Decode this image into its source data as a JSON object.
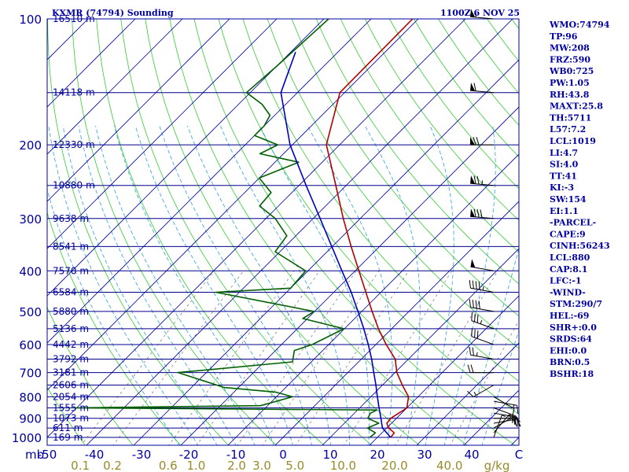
{
  "header": {
    "title": "KXMR (74794) Sounding",
    "datetime": "1100Z  6 NOV 25"
  },
  "colors": {
    "frame": "#0000a0",
    "isobar": "#00008b",
    "isotherm": "#0000a0",
    "dry_adiabat": "#32cd32",
    "moist_adiabat": "#30a0e0",
    "mixing_ratio": "#707070",
    "temperature": "#b00000",
    "dewpoint": "#006000",
    "parcel": "#0000c0",
    "mixing_label": "#9a8a2a"
  },
  "chart_data": {
    "type": "skew-t",
    "ylabel": "mb",
    "xlabel": "C",
    "ylim": [
      1000,
      100
    ],
    "xlim": [
      -50,
      50
    ],
    "pressure_levels": [
      {
        "p": 100,
        "label": "100",
        "height": "16510 m"
      },
      {
        "p": 150,
        "label": "",
        "height": "14118 m"
      },
      {
        "p": 200,
        "label": "200",
        "height": "12330 m"
      },
      {
        "p": 250,
        "label": "",
        "height": "10880 m"
      },
      {
        "p": 300,
        "label": "300",
        "height": "9638 m"
      },
      {
        "p": 350,
        "label": "",
        "height": "8541 m"
      },
      {
        "p": 400,
        "label": "400",
        "height": "7570 m"
      },
      {
        "p": 450,
        "label": "",
        "height": "6584 m"
      },
      {
        "p": 500,
        "label": "500",
        "height": "5880 m"
      },
      {
        "p": 550,
        "label": "",
        "height": "5136 m"
      },
      {
        "p": 600,
        "label": "600",
        "height": "4442 m"
      },
      {
        "p": 650,
        "label": "",
        "height": "3792 m"
      },
      {
        "p": 700,
        "label": "700",
        "height": "3181 m"
      },
      {
        "p": 750,
        "label": "",
        "height": "2606 m"
      },
      {
        "p": 800,
        "label": "800",
        "height": "2054 m"
      },
      {
        "p": 850,
        "label": "",
        "height": "1555 m"
      },
      {
        "p": 900,
        "label": "900",
        "height": "1073 m"
      },
      {
        "p": 950,
        "label": "",
        "height": "611 m"
      },
      {
        "p": 1000,
        "label": "1000",
        "height": "169 m"
      }
    ],
    "temp_ticks": [
      -50,
      -40,
      -30,
      -20,
      -10,
      0,
      10,
      20,
      30,
      40
    ],
    "temp_tick_labels": [
      "-50",
      "-40",
      "-30",
      "-20",
      "-10",
      "0",
      "10",
      "20",
      "30",
      "40"
    ],
    "unit_label": "C",
    "mixing_ratio_ticks": [
      {
        "value": 0.1,
        "label": "0.1"
      },
      {
        "value": 0.2,
        "label": "0.2"
      },
      {
        "value": 0.6,
        "label": "0.6"
      },
      {
        "value": 1.0,
        "label": "1.0"
      },
      {
        "value": 2.0,
        "label": "2.0"
      },
      {
        "value": 3.0,
        "label": "3.0"
      },
      {
        "value": 5.0,
        "label": "5.0"
      },
      {
        "value": 10.0,
        "label": "10.0"
      },
      {
        "value": 20.0,
        "label": "20.0"
      },
      {
        "value": 40.0,
        "label": "40.0"
      }
    ],
    "mixing_unit": "g/kg",
    "series": [
      {
        "key": "temperature",
        "points": [
          [
            1000,
            22.8
          ],
          [
            975,
            22.6
          ],
          [
            950,
            20.4
          ],
          [
            925,
            19.0
          ],
          [
            900,
            18.8
          ],
          [
            875,
            19.4
          ],
          [
            850,
            20.0
          ],
          [
            800,
            18.0
          ],
          [
            750,
            14.2
          ],
          [
            700,
            10.4
          ],
          [
            650,
            7.2
          ],
          [
            600,
            2.2
          ],
          [
            550,
            -2.8
          ],
          [
            500,
            -7.8
          ],
          [
            450,
            -13.2
          ],
          [
            400,
            -19.2
          ],
          [
            350,
            -26.0
          ],
          [
            300,
            -33.6
          ],
          [
            250,
            -42.2
          ],
          [
            200,
            -52.8
          ],
          [
            150,
            -61.0
          ],
          [
            100,
            -61.2
          ]
        ]
      },
      {
        "key": "dewpoint",
        "points": [
          [
            1000,
            18.4
          ],
          [
            975,
            18.6
          ],
          [
            950,
            15.9
          ],
          [
            925,
            17.3
          ],
          [
            900,
            13.9
          ],
          [
            875,
            13.4
          ],
          [
            860,
            14.1
          ],
          [
            850,
            -50.6
          ],
          [
            840,
            -11.5
          ],
          [
            800,
            -6.6
          ],
          [
            780,
            -11.0
          ],
          [
            760,
            -23.0
          ],
          [
            700,
            -36.0
          ],
          [
            660,
            -14.0
          ],
          [
            620,
            -16.0
          ],
          [
            600,
            -13.5
          ],
          [
            550,
            -10.1
          ],
          [
            520,
            -21.0
          ],
          [
            500,
            -20.1
          ],
          [
            450,
            -45.0
          ],
          [
            440,
            -30.0
          ],
          [
            400,
            -30.5
          ],
          [
            360,
            -41.0
          ],
          [
            330,
            -41.9
          ],
          [
            300,
            -48.0
          ],
          [
            280,
            -54.0
          ],
          [
            260,
            -54.4
          ],
          [
            240,
            -60.0
          ],
          [
            220,
            -55.0
          ],
          [
            210,
            -65.0
          ],
          [
            200,
            -63.1
          ],
          [
            190,
            -70.0
          ],
          [
            180,
            -70.0
          ],
          [
            170,
            -71.0
          ],
          [
            160,
            -75.0
          ],
          [
            150,
            -80.8
          ],
          [
            130,
            -80.0
          ],
          [
            100,
            -79.0
          ]
        ]
      },
      {
        "key": "parcel",
        "points": [
          [
            1000,
            22.8
          ],
          [
            975,
            21.0
          ],
          [
            950,
            19.1
          ],
          [
            925,
            17.9
          ],
          [
            900,
            16.7
          ],
          [
            850,
            14.1
          ],
          [
            800,
            11.4
          ],
          [
            750,
            8.6
          ],
          [
            700,
            5.5
          ],
          [
            650,
            2.2
          ],
          [
            600,
            -1.6
          ],
          [
            550,
            -5.9
          ],
          [
            500,
            -10.8
          ],
          [
            450,
            -16.3
          ],
          [
            400,
            -22.8
          ],
          [
            350,
            -30.1
          ],
          [
            300,
            -38.5
          ],
          [
            250,
            -48.5
          ],
          [
            200,
            -60.5
          ],
          [
            150,
            -73.5
          ],
          [
            120,
            -79.0
          ]
        ]
      }
    ]
  },
  "wind_barbs": [
    {
      "p": 1000,
      "dir": 20,
      "spd": 5
    },
    {
      "p": 975,
      "dir": 40,
      "spd": 10
    },
    {
      "p": 950,
      "dir": 60,
      "spd": 15
    },
    {
      "p": 925,
      "dir": 80,
      "spd": 20
    },
    {
      "p": 900,
      "dir": 90,
      "spd": 20
    },
    {
      "p": 875,
      "dir": 100,
      "spd": 25
    },
    {
      "p": 850,
      "dir": 110,
      "spd": 25
    },
    {
      "p": 820,
      "dir": 100,
      "spd": 15
    },
    {
      "p": 800,
      "dir": 120,
      "spd": 10
    },
    {
      "p": 750,
      "dir": 240,
      "spd": 15
    },
    {
      "p": 700,
      "dir": 270,
      "spd": 20
    },
    {
      "p": 650,
      "dir": 280,
      "spd": 25
    },
    {
      "p": 600,
      "dir": 290,
      "spd": 30
    },
    {
      "p": 550,
      "dir": 290,
      "spd": 35
    },
    {
      "p": 500,
      "dir": 280,
      "spd": 40
    },
    {
      "p": 450,
      "dir": 280,
      "spd": 45
    },
    {
      "p": 400,
      "dir": 280,
      "spd": 50
    },
    {
      "p": 300,
      "dir": 275,
      "spd": 80
    },
    {
      "p": 250,
      "dir": 275,
      "spd": 75
    },
    {
      "p": 200,
      "dir": 270,
      "spd": 70
    },
    {
      "p": 150,
      "dir": 275,
      "spd": 60
    },
    {
      "p": 100,
      "dir": 275,
      "spd": 55
    }
  ],
  "indices": [
    "WMO:74794",
    "TP:96",
    "MW:208",
    "FRZ:590",
    "WB0:725",
    "PW:1.05",
    "RH:43.8",
    "MAXT:25.8",
    "TH:5711",
    "L57:7.2",
    "LCL:1019",
    "LI:4.7",
    "SI:4.0",
    "TT:41",
    "KI:-3",
    "SW:154",
    "EI:1.1",
    "-PARCEL-",
    "CAPE:9",
    "CINH:56243",
    "LCL:880",
    "CAP:8.1",
    "LFC:-1",
    "-WIND-",
    "STM:290/7",
    "HEL:-69",
    "SHR+:0.0",
    "SRDS:64",
    "EHI:0.0",
    "BRN:0.5",
    "BSHR:18"
  ]
}
